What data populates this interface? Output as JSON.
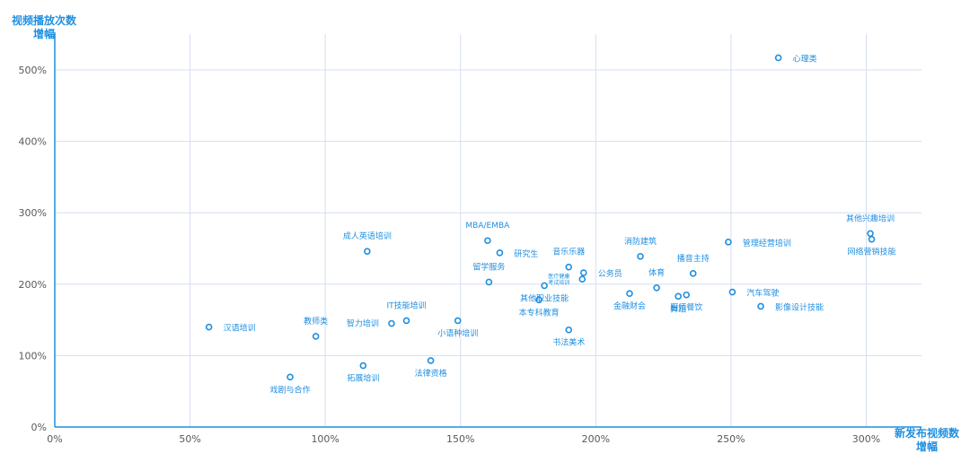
{
  "colors": {
    "accent": "#1f8fe0",
    "grid": "#d6ddf2",
    "axis": "#1f8fe0",
    "tick_text": "#595959",
    "background": "#ffffff"
  },
  "chart_data": {
    "type": "scatter",
    "title": "",
    "xlabel": [
      "新发布视频数",
      "增幅"
    ],
    "ylabel": [
      "视频播放次数",
      "增幅"
    ],
    "xlim": [
      0,
      320
    ],
    "ylim": [
      0,
      550
    ],
    "x_ticks": [
      0,
      50,
      100,
      150,
      200,
      250,
      300
    ],
    "x_tick_labels": [
      "0%",
      "50%",
      "100%",
      "150%",
      "200%",
      "250%",
      "300%"
    ],
    "y_ticks": [
      0,
      100,
      200,
      300,
      400,
      500
    ],
    "y_tick_labels": [
      "0%",
      "100%",
      "200%",
      "300%",
      "400%",
      "500%"
    ],
    "grid": true,
    "marker": "open-circle",
    "points": [
      {
        "label": "心理类",
        "x": 267.5,
        "y": 517,
        "pos": "right"
      },
      {
        "label": "其他兴趣培训",
        "x": 301.5,
        "y": 271,
        "pos": "above"
      },
      {
        "label": "网络营销技能",
        "x": 302,
        "y": 263,
        "pos": "below"
      },
      {
        "label": "管理经营培训",
        "x": 249,
        "y": 259,
        "pos": "right"
      },
      {
        "label": "MBA/EMBA",
        "x": 160,
        "y": 261,
        "pos": "above"
      },
      {
        "label": "成人英语培训",
        "x": 115.5,
        "y": 246,
        "pos": "above"
      },
      {
        "label": "研究生",
        "x": 164.5,
        "y": 244,
        "pos": "right"
      },
      {
        "label": "消防建筑",
        "x": 216.5,
        "y": 239,
        "pos": "above"
      },
      {
        "label": "音乐乐器",
        "x": 190,
        "y": 224,
        "pos": "above"
      },
      {
        "label": "公务员",
        "x": 195.5,
        "y": 216,
        "pos": "right"
      },
      {
        "label": "播音主持",
        "x": 236,
        "y": 215,
        "pos": "above"
      },
      {
        "label": "医疗健康考试培训",
        "x": 195,
        "y": 207,
        "pos": "left",
        "small": true
      },
      {
        "label": "留学服务",
        "x": 160.5,
        "y": 203,
        "pos": "above"
      },
      {
        "label": "体育",
        "x": 222.5,
        "y": 195,
        "pos": "above"
      },
      {
        "label": "其他职业技能",
        "x": 181,
        "y": 198,
        "pos": "below"
      },
      {
        "label": "汽车驾驶",
        "x": 250.5,
        "y": 189,
        "pos": "right"
      },
      {
        "label": "金融财会",
        "x": 212.5,
        "y": 187,
        "pos": "below"
      },
      {
        "label": "舞蹈",
        "x": 230.5,
        "y": 183,
        "pos": "below"
      },
      {
        "label": "厨师餐饮",
        "x": 233.5,
        "y": 185,
        "pos": "below"
      },
      {
        "label": "本专科教育",
        "x": 179,
        "y": 178,
        "pos": "below"
      },
      {
        "label": "影像设计技能",
        "x": 261,
        "y": 169,
        "pos": "right"
      },
      {
        "label": "IT技能培训",
        "x": 130,
        "y": 149,
        "pos": "above"
      },
      {
        "label": "智力培训",
        "x": 124.5,
        "y": 145,
        "pos": "left"
      },
      {
        "label": "小语种培训",
        "x": 149,
        "y": 149,
        "pos": "below"
      },
      {
        "label": "汉语培训",
        "x": 57,
        "y": 140,
        "pos": "right"
      },
      {
        "label": "教师类",
        "x": 96.5,
        "y": 127,
        "pos": "above"
      },
      {
        "label": "书法美术",
        "x": 190,
        "y": 136,
        "pos": "below"
      },
      {
        "label": "法律资格",
        "x": 139,
        "y": 93,
        "pos": "below"
      },
      {
        "label": "拓展培训",
        "x": 114,
        "y": 86,
        "pos": "below"
      },
      {
        "label": "戏剧与合作",
        "x": 87,
        "y": 70,
        "pos": "below"
      }
    ]
  }
}
